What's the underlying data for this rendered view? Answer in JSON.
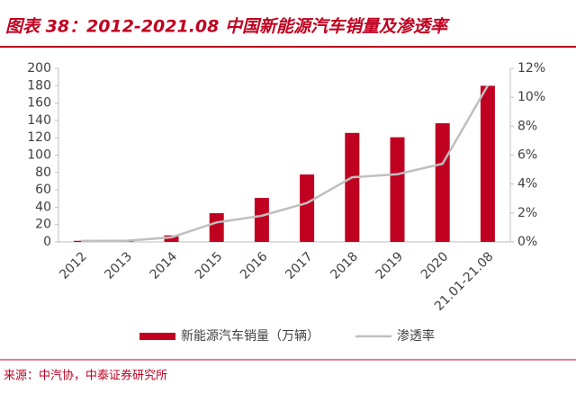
{
  "chart_data": {
    "type": "bar_line",
    "title": "图表 38：2012-2021.08 中国新能源汽车销量及渗透率",
    "source": "来源：中汽协，中泰证券研究所",
    "categories": [
      "2012",
      "2013",
      "2014",
      "2015",
      "2016",
      "2017",
      "2018",
      "2019",
      "2020",
      "21.01-21.08"
    ],
    "series": [
      {
        "name": "新能源汽车销量（万辆）",
        "type": "bar",
        "color": "#c00020",
        "values": [
          1.3,
          1.8,
          7.5,
          33.1,
          50.7,
          77.7,
          125.6,
          120.6,
          136.7,
          179.9
        ]
      },
      {
        "name": "渗透率",
        "type": "line",
        "axis": "y2",
        "color": "#bfbfbf",
        "values": [
          0.07,
          0.08,
          0.32,
          1.35,
          1.81,
          2.69,
          4.47,
          4.68,
          5.4,
          10.8
        ]
      }
    ],
    "ylim": [
      0,
      200
    ],
    "yticks": [
      0,
      20,
      40,
      60,
      80,
      100,
      120,
      140,
      160,
      180,
      200
    ],
    "y2lim": [
      0,
      12
    ],
    "y2ticks": [
      {
        "value": 0,
        "label": "0%"
      },
      {
        "value": 2,
        "label": "2%"
      },
      {
        "value": 4,
        "label": "4%"
      },
      {
        "value": 6,
        "label": "6%"
      },
      {
        "value": 8,
        "label": "8%"
      },
      {
        "value": 10,
        "label": "10%"
      },
      {
        "value": 12,
        "label": "12%"
      }
    ],
    "legend": "bottom"
  }
}
